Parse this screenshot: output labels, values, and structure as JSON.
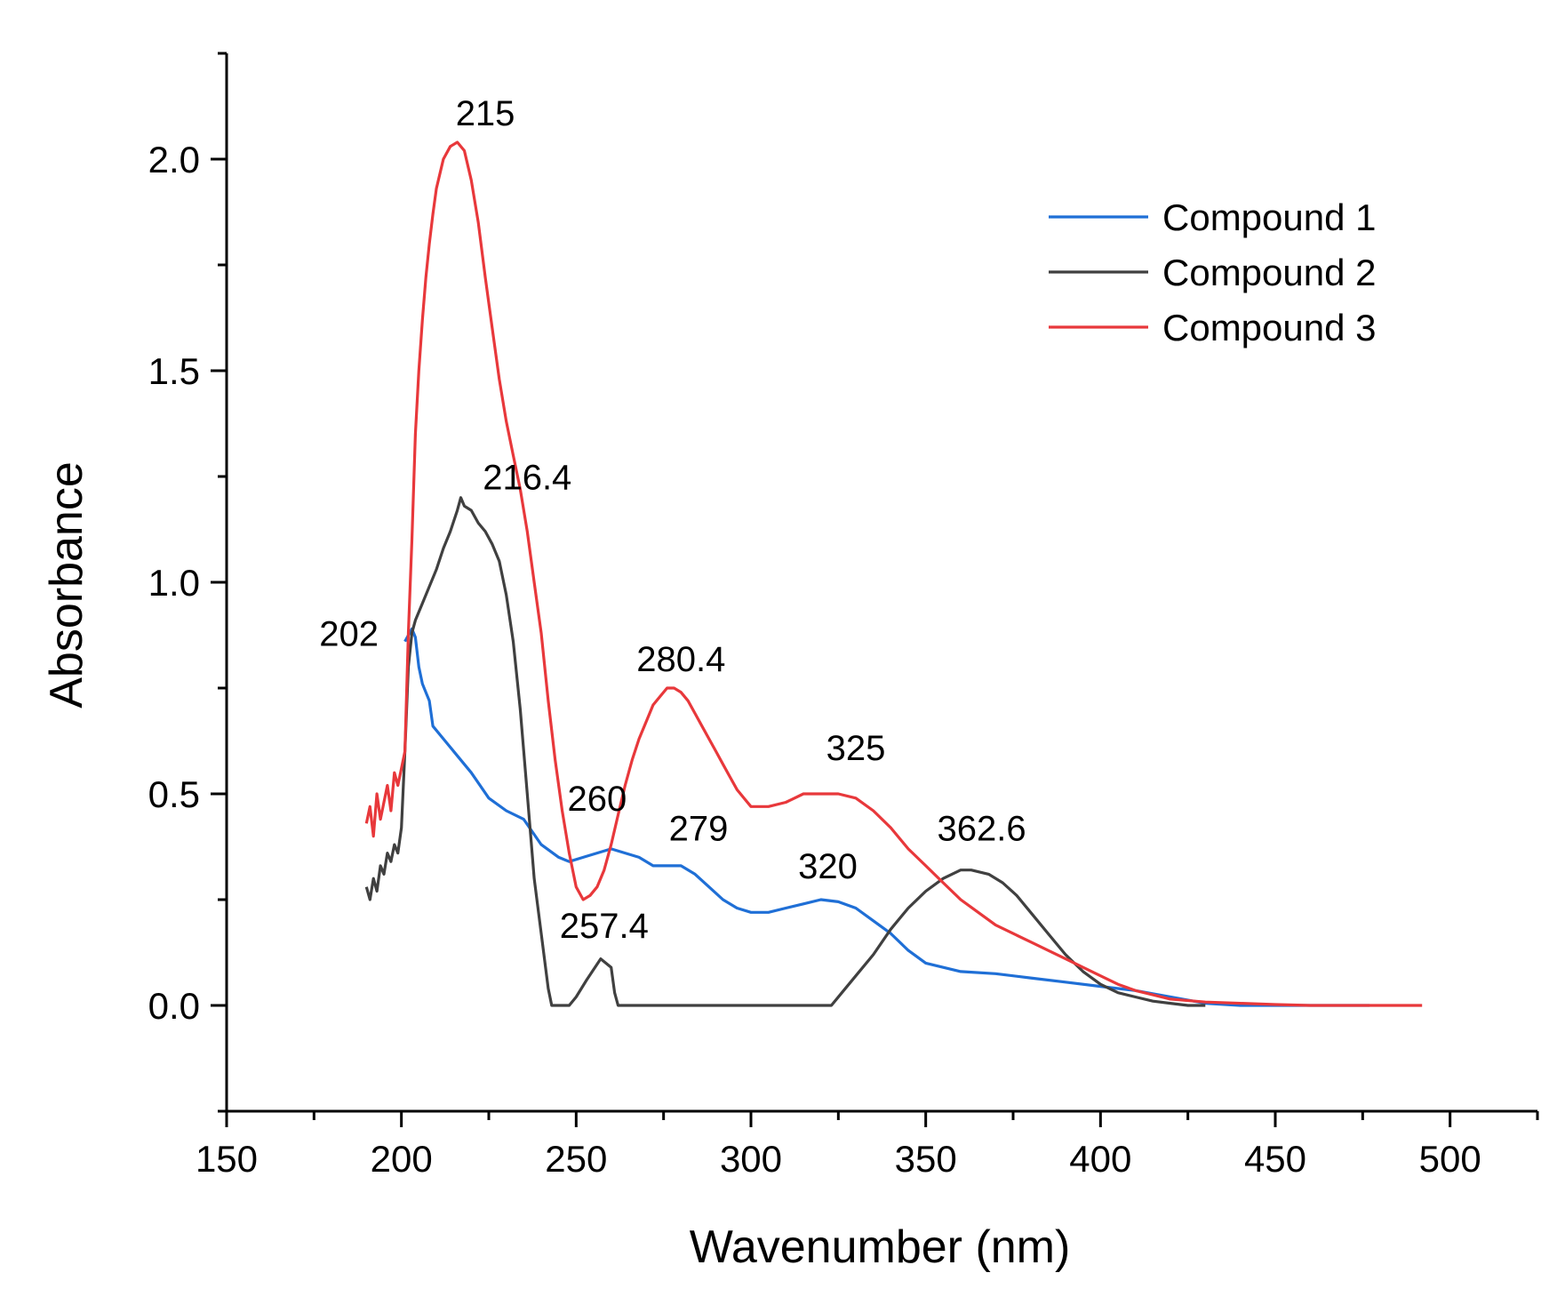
{
  "chart_data": {
    "type": "line",
    "title": "",
    "xlabel": "Wavenumber (nm)",
    "ylabel": "Absorbance",
    "xlim": [
      150,
      525
    ],
    "ylim": [
      -0.25,
      2.25
    ],
    "xticks": [
      150,
      200,
      250,
      300,
      350,
      400,
      450,
      500
    ],
    "yticks": [
      0.0,
      0.5,
      1.0,
      1.5,
      2.0
    ],
    "legend_position": "top-right",
    "series": [
      {
        "name": "Compound 1",
        "color": "#1f6fd6",
        "x": [
          201,
          203,
          204,
          205,
          206,
          207,
          208,
          209,
          212,
          216,
          220,
          225,
          230,
          235,
          240,
          245,
          248,
          252,
          256,
          260,
          264,
          268,
          272,
          276,
          280,
          284,
          288,
          292,
          296,
          300,
          305,
          310,
          315,
          320,
          325,
          330,
          335,
          340,
          345,
          350,
          360,
          370,
          380,
          390,
          400,
          410,
          420,
          430,
          440,
          450,
          460,
          470,
          477
        ],
        "y": [
          0.86,
          0.89,
          0.87,
          0.8,
          0.76,
          0.74,
          0.72,
          0.66,
          0.63,
          0.59,
          0.55,
          0.49,
          0.46,
          0.44,
          0.38,
          0.35,
          0.34,
          0.35,
          0.36,
          0.37,
          0.36,
          0.35,
          0.33,
          0.33,
          0.33,
          0.31,
          0.28,
          0.25,
          0.23,
          0.22,
          0.22,
          0.23,
          0.24,
          0.25,
          0.245,
          0.23,
          0.2,
          0.17,
          0.13,
          0.1,
          0.08,
          0.075,
          0.065,
          0.055,
          0.045,
          0.035,
          0.02,
          0.005,
          0.0,
          0.0,
          0.0,
          0.0,
          0.0
        ]
      },
      {
        "name": "Compound 2",
        "color": "#404040",
        "x": [
          190,
          191,
          192,
          193,
          194,
          195,
          196,
          197,
          198,
          199,
          200,
          201,
          202,
          203,
          204,
          206,
          208,
          210,
          212,
          214,
          216,
          217,
          218,
          220,
          222,
          224,
          226,
          228,
          230,
          232,
          234,
          236,
          238,
          240,
          242,
          243,
          248,
          250,
          253,
          257,
          260,
          261,
          262,
          300,
          323,
          326,
          330,
          335,
          340,
          345,
          350,
          355,
          360,
          363,
          368,
          372,
          376,
          380,
          385,
          390,
          395,
          400,
          405,
          410,
          415,
          420,
          425,
          430
        ],
        "y": [
          0.28,
          0.25,
          0.3,
          0.27,
          0.33,
          0.31,
          0.36,
          0.34,
          0.38,
          0.36,
          0.42,
          0.6,
          0.8,
          0.88,
          0.91,
          0.95,
          0.99,
          1.03,
          1.08,
          1.12,
          1.17,
          1.2,
          1.18,
          1.17,
          1.14,
          1.12,
          1.09,
          1.05,
          0.97,
          0.86,
          0.7,
          0.5,
          0.3,
          0.17,
          0.04,
          0.0,
          0.0,
          0.02,
          0.06,
          0.11,
          0.09,
          0.03,
          0.0,
          0.0,
          0.0,
          0.03,
          0.07,
          0.12,
          0.18,
          0.23,
          0.27,
          0.3,
          0.32,
          0.32,
          0.31,
          0.29,
          0.26,
          0.22,
          0.17,
          0.12,
          0.08,
          0.05,
          0.03,
          0.02,
          0.01,
          0.005,
          0.0,
          0.0
        ]
      },
      {
        "name": "Compound 3",
        "color": "#e8383b",
        "x": [
          190,
          191,
          192,
          193,
          194,
          195,
          196,
          197,
          198,
          199,
          200,
          201,
          202,
          203,
          204,
          205,
          206,
          207,
          208,
          209,
          210,
          212,
          214,
          216,
          218,
          220,
          222,
          224,
          226,
          228,
          230,
          232,
          234,
          236,
          238,
          240,
          242,
          244,
          246,
          248,
          250,
          252,
          254,
          256,
          258,
          260,
          262,
          264,
          266,
          268,
          270,
          272,
          274,
          276,
          278,
          280,
          282,
          284,
          286,
          288,
          290,
          292,
          294,
          296,
          298,
          300,
          305,
          310,
          315,
          320,
          325,
          330,
          335,
          340,
          345,
          350,
          355,
          360,
          365,
          370,
          375,
          380,
          385,
          390,
          395,
          400,
          405,
          410,
          415,
          420,
          430,
          440,
          450,
          460,
          470,
          480,
          492
        ],
        "y": [
          0.43,
          0.47,
          0.4,
          0.5,
          0.44,
          0.48,
          0.52,
          0.46,
          0.55,
          0.52,
          0.56,
          0.6,
          0.88,
          1.1,
          1.35,
          1.5,
          1.62,
          1.72,
          1.8,
          1.87,
          1.93,
          2.0,
          2.03,
          2.04,
          2.02,
          1.95,
          1.85,
          1.72,
          1.6,
          1.48,
          1.38,
          1.3,
          1.22,
          1.12,
          1.0,
          0.88,
          0.72,
          0.58,
          0.46,
          0.36,
          0.28,
          0.25,
          0.26,
          0.28,
          0.32,
          0.38,
          0.45,
          0.52,
          0.58,
          0.63,
          0.67,
          0.71,
          0.73,
          0.75,
          0.75,
          0.74,
          0.72,
          0.69,
          0.66,
          0.63,
          0.6,
          0.57,
          0.54,
          0.51,
          0.49,
          0.47,
          0.47,
          0.48,
          0.5,
          0.5,
          0.5,
          0.49,
          0.46,
          0.42,
          0.37,
          0.33,
          0.29,
          0.25,
          0.22,
          0.19,
          0.17,
          0.15,
          0.13,
          0.11,
          0.09,
          0.07,
          0.05,
          0.035,
          0.025,
          0.015,
          0.008,
          0.005,
          0.002,
          0.0,
          0.0,
          0.0,
          0.0
        ]
      }
    ],
    "annotations": [
      {
        "text": "215",
        "x": 224,
        "y": 2.08
      },
      {
        "text": "216.4",
        "x": 236,
        "y": 1.22
      },
      {
        "text": "202",
        "x": 185,
        "y": 0.85
      },
      {
        "text": "280.4",
        "x": 280,
        "y": 0.79
      },
      {
        "text": "325",
        "x": 330,
        "y": 0.58
      },
      {
        "text": "260",
        "x": 256,
        "y": 0.46
      },
      {
        "text": "279",
        "x": 285,
        "y": 0.39
      },
      {
        "text": "362.6",
        "x": 366,
        "y": 0.39
      },
      {
        "text": "320",
        "x": 322,
        "y": 0.3
      },
      {
        "text": "257.4",
        "x": 258,
        "y": 0.16
      }
    ]
  }
}
